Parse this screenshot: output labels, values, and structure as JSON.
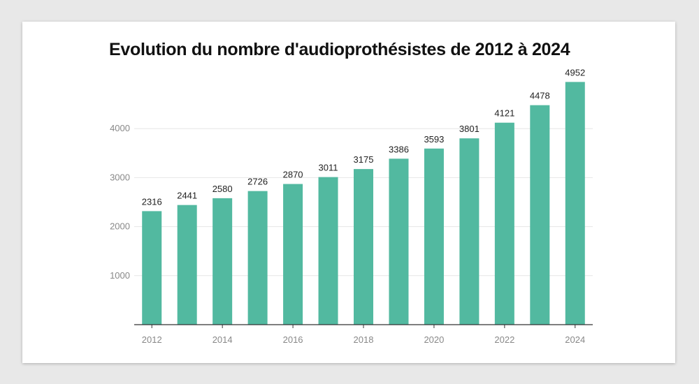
{
  "chart_data": {
    "type": "bar",
    "title": "Evolution du nombre d'audioprothésistes de 2012 à 2024",
    "xlabel": "",
    "ylabel": "",
    "categories": [
      "2012",
      "2013",
      "2014",
      "2015",
      "2016",
      "2017",
      "2018",
      "2019",
      "2020",
      "2021",
      "2022",
      "2023",
      "2024"
    ],
    "x_tick_labels": [
      "2012",
      "",
      "2014",
      "",
      "2016",
      "",
      "2018",
      "",
      "2020",
      "",
      "2022",
      "",
      "2024"
    ],
    "values": [
      2316,
      2441,
      2580,
      2726,
      2870,
      3011,
      3175,
      3386,
      3593,
      3801,
      4121,
      4478,
      4952
    ],
    "y_ticks": [
      1000,
      2000,
      3000,
      4000
    ],
    "ylim": [
      0,
      5000
    ],
    "grid": true,
    "legend": "none",
    "bar_color": "#52b9a0",
    "axis_color": "#333333",
    "grid_color": "#e6e6e6"
  }
}
